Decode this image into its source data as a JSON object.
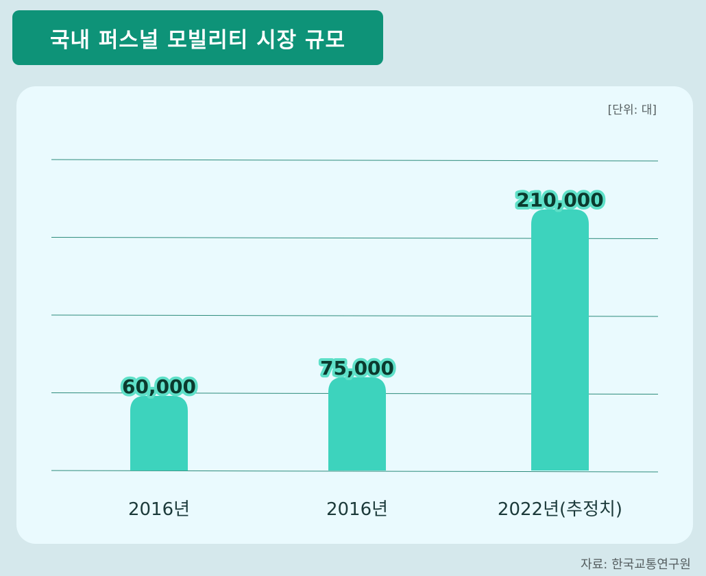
{
  "header": {
    "title": "국내 퍼스널 모빌리티 시장 규모"
  },
  "unit_label": "[단위: 대]",
  "source_label": "자료: 한국교통연구원",
  "colors": {
    "background": "#d5e8ec",
    "title_box": "#0e9378",
    "card": "#eafafe",
    "bar": "#3dd3bd",
    "gridline": "#2b8a7a"
  },
  "chart_data": {
    "type": "bar",
    "title": "국내 퍼스널 모빌리티 시장 규모",
    "categories": [
      "2016년",
      "2016년",
      "2022년(추정치)"
    ],
    "values": [
      60000,
      75000,
      210000
    ],
    "value_labels": [
      "60,000",
      "75,000",
      "210,000"
    ],
    "unit": "[단위: 대]",
    "ylim": [
      0,
      250000
    ],
    "grid": true,
    "legend": "none"
  }
}
